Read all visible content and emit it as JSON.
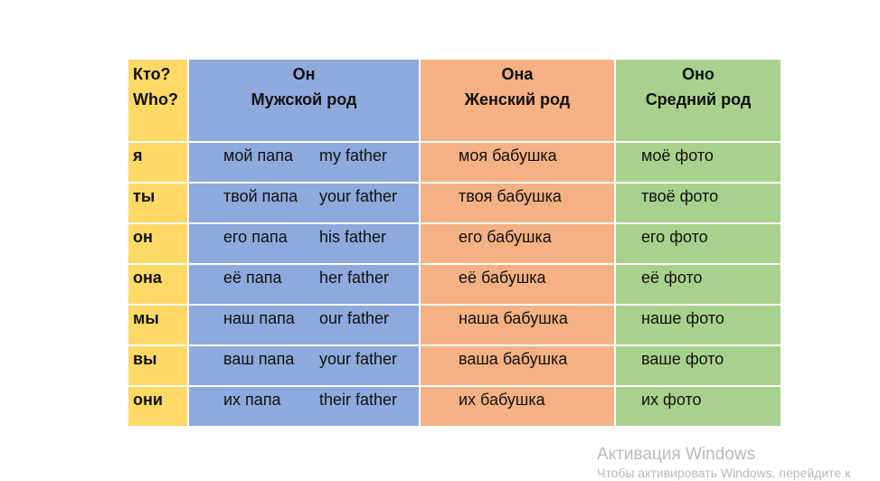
{
  "header": {
    "who": [
      "Кто?",
      "Who?"
    ],
    "masculine": {
      "pronoun": "Он",
      "label": "Мужской род"
    },
    "feminine": {
      "pronoun": "Она",
      "label": "Женский род"
    },
    "neuter": {
      "pronoun": "Оно",
      "label": "Средний род"
    }
  },
  "rows": [
    {
      "who": "я",
      "masc_ru": "мой папа",
      "masc_en": "my father",
      "fem": "моя бабушка",
      "neut": "моё фото"
    },
    {
      "who": "ты",
      "masc_ru": "твой папа",
      "masc_en": "your father",
      "fem": "твоя бабушка",
      "neut": "твоё фото"
    },
    {
      "who": "он",
      "masc_ru": "его папа",
      "masc_en": "his father",
      "fem": "его бабушка",
      "neut": "его фото"
    },
    {
      "who": "она",
      "masc_ru": "её папа",
      "masc_en": "her father",
      "fem": "её бабушка",
      "neut": "её фото"
    },
    {
      "who": "мы",
      "masc_ru": "наш папа",
      "masc_en": "our father",
      "fem": "наша бабушка",
      "neut": "наше фото"
    },
    {
      "who": "вы",
      "masc_ru": "ваш папа",
      "masc_en": "your father",
      "fem": "ваша бабушка",
      "neut": "ваше фото"
    },
    {
      "who": "они",
      "masc_ru": "их папа",
      "masc_en": "their father",
      "fem": "их бабушка",
      "neut": "их фото"
    }
  ],
  "colors": {
    "who": "#FFD966",
    "masculine": "#8EA9DB",
    "feminine": "#F4B183",
    "neuter": "#A9D18E"
  },
  "watermark": {
    "title": "Активация Windows",
    "subtitle": "Чтобы активировать Windows, перейдите к"
  }
}
